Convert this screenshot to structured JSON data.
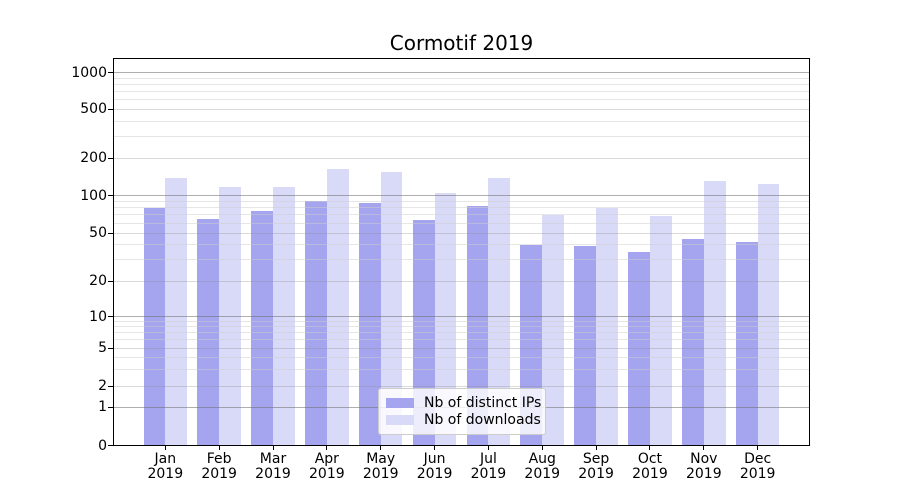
{
  "chart_data": {
    "type": "bar",
    "title": "Cormotif 2019",
    "categories": [
      "Jan 2019",
      "Feb 2019",
      "Mar 2019",
      "Apr 2019",
      "May 2019",
      "Jun 2019",
      "Jul 2019",
      "Aug 2019",
      "Sep 2019",
      "Oct 2019",
      "Nov 2019",
      "Dec 2019"
    ],
    "series": [
      {
        "name": "Nb of distinct IPs",
        "color": "#a4a4ef",
        "values": [
          80,
          65,
          75,
          90,
          87,
          64,
          83,
          40,
          39,
          35,
          45,
          42
        ]
      },
      {
        "name": "Nb of downloads",
        "color": "#d9d9f8",
        "values": [
          140,
          118,
          118,
          165,
          155,
          105,
          140,
          70,
          79,
          68,
          132,
          124
        ]
      }
    ],
    "xlabel": "",
    "ylabel": "",
    "yscale": "log-like (1-2-5 ticks, 0 baseline)",
    "yticks": [
      1000,
      500,
      200,
      100,
      50,
      20,
      10,
      5,
      2,
      1,
      0
    ],
    "ylim": [
      0,
      1300
    ],
    "grid": true,
    "legend_position": "lower center"
  },
  "gridlines": {
    "major_values": [
      1000,
      100,
      10,
      1
    ],
    "mid_values": [
      500,
      200,
      50,
      20,
      5,
      2
    ],
    "minor_values": [
      900,
      800,
      700,
      600,
      400,
      300,
      90,
      80,
      70,
      60,
      40,
      30,
      9,
      8,
      7,
      6,
      4,
      3
    ],
    "major_color": "rgba(110,110,110,0.55)",
    "mid_color": "rgba(140,140,140,0.32)",
    "minor_color": "rgba(205,205,205,0.5)"
  },
  "frame_color": "#000000",
  "background_color": "#ffffff",
  "legend_style": {
    "border_color": "#cccccc",
    "background": "rgba(255,255,255,0.8)"
  }
}
